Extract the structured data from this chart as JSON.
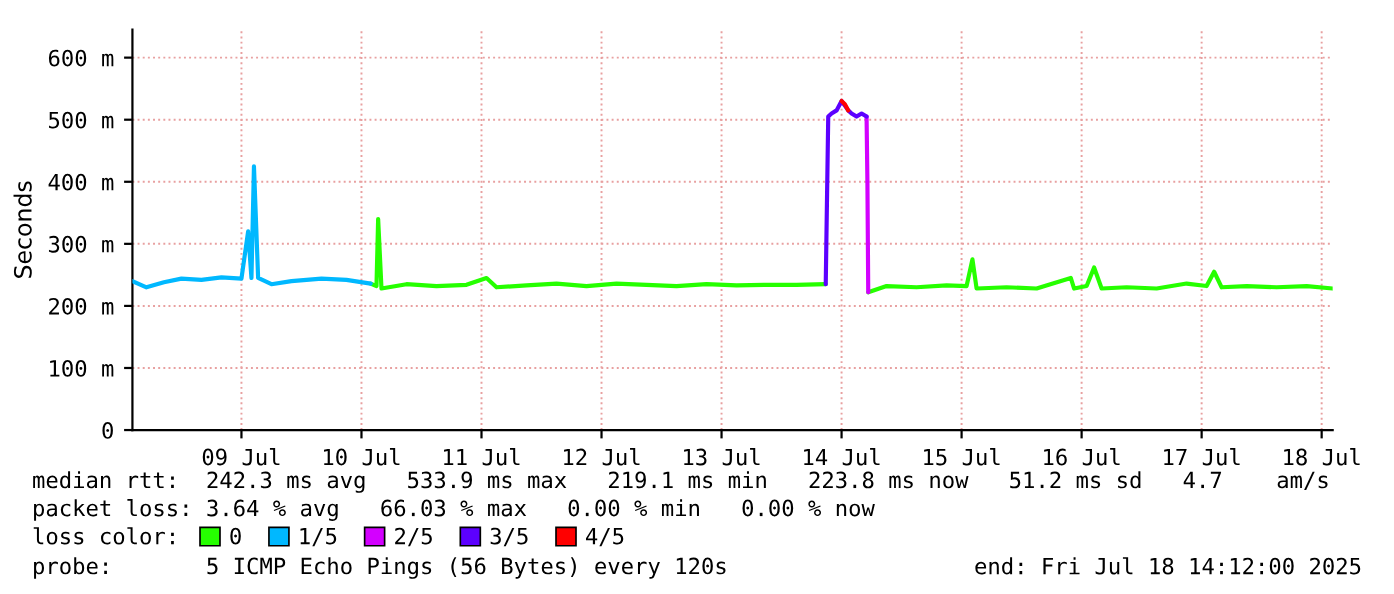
{
  "chart_data": {
    "type": "line",
    "ylabel": "Seconds",
    "xlim": [
      "2025-07-08T14:12",
      "2025-07-18T14:12"
    ],
    "xticks": [
      {
        "value": "2025-07-09T12:00",
        "label": "09 Jul"
      },
      {
        "value": "2025-07-10T12:00",
        "label": "10 Jul"
      },
      {
        "value": "2025-07-11T12:00",
        "label": "11 Jul"
      },
      {
        "value": "2025-07-12T12:00",
        "label": "12 Jul"
      },
      {
        "value": "2025-07-13T12:00",
        "label": "13 Jul"
      },
      {
        "value": "2025-07-14T12:00",
        "label": "14 Jul"
      },
      {
        "value": "2025-07-15T12:00",
        "label": "15 Jul"
      },
      {
        "value": "2025-07-16T12:00",
        "label": "16 Jul"
      },
      {
        "value": "2025-07-17T12:00",
        "label": "17 Jul"
      },
      {
        "value": "2025-07-18T12:00",
        "label": "18 Jul"
      }
    ],
    "ylim": [
      0,
      645
    ],
    "yticks": [
      0,
      {
        "value": 100,
        "label": "100 m"
      },
      {
        "value": 200,
        "label": "200 m"
      },
      {
        "value": 300,
        "label": "300 m"
      },
      {
        "value": 400,
        "label": "400 m"
      },
      {
        "value": 500,
        "label": "500 m"
      },
      {
        "value": 600,
        "label": "600 m"
      }
    ],
    "grid": true,
    "legend": "bottom",
    "legend_title": "loss color:",
    "series": [
      {
        "name": "0",
        "color": "#26ff00",
        "x": [
          "2025-07-10T13:50",
          "2025-07-10T15:00",
          "2025-07-10T15:20",
          "2025-07-10T16:00",
          "2025-07-10T21:00",
          "2025-07-11T03:00",
          "2025-07-11T09:00",
          "2025-07-11T13:00",
          "2025-07-11T15:00",
          "2025-07-11T21:00",
          "2025-07-12T03:00",
          "2025-07-12T09:00",
          "2025-07-12T15:00",
          "2025-07-12T21:00",
          "2025-07-13T03:00",
          "2025-07-13T09:00",
          "2025-07-13T15:00",
          "2025-07-13T21:00",
          "2025-07-14T03:00",
          "2025-07-14T08:50",
          "2025-07-14T12:00",
          "2025-07-14T17:20",
          "2025-07-14T21:00",
          "2025-07-15T03:00",
          "2025-07-15T09:00",
          "2025-07-15T13:00",
          "2025-07-15T14:10",
          "2025-07-15T15:00",
          "2025-07-15T21:00",
          "2025-07-16T03:00",
          "2025-07-16T09:50",
          "2025-07-16T10:30",
          "2025-07-16T13:00",
          "2025-07-16T14:30",
          "2025-07-16T16:00",
          "2025-07-16T21:00",
          "2025-07-17T03:00",
          "2025-07-17T09:00",
          "2025-07-17T13:00",
          "2025-07-17T14:30",
          "2025-07-17T16:00",
          "2025-07-17T21:00",
          "2025-07-18T03:00",
          "2025-07-18T09:00",
          "2025-07-18T14:12"
        ],
        "values": [
          236,
          232,
          340,
          228,
          235,
          232,
          234,
          245,
          230,
          233,
          236,
          232,
          236,
          234,
          232,
          235,
          233,
          234,
          234,
          235,
          null,
          222,
          232,
          230,
          233,
          232,
          275,
          228,
          230,
          228,
          245,
          228,
          232,
          262,
          228,
          230,
          228,
          236,
          232,
          255,
          230,
          232,
          230,
          232,
          228
        ]
      },
      {
        "name": "1/5",
        "color": "#00b8ff",
        "x": [
          "2025-07-08T14:12",
          "2025-07-08T17:00",
          "2025-07-08T20:30",
          "2025-07-09T00:00",
          "2025-07-09T04:00",
          "2025-07-09T08:00",
          "2025-07-09T12:00",
          "2025-07-09T13:20",
          "2025-07-09T14:00",
          "2025-07-09T14:30",
          "2025-07-09T15:20",
          "2025-07-09T18:00",
          "2025-07-09T22:00",
          "2025-07-10T04:00",
          "2025-07-10T09:00",
          "2025-07-10T13:50"
        ],
        "values": [
          240,
          230,
          238,
          244,
          242,
          246,
          244,
          320,
          245,
          425,
          245,
          235,
          240,
          244,
          242,
          236
        ]
      },
      {
        "name": "2/5",
        "color": "#d300ff",
        "x": [
          "2025-07-14T17:00",
          "2025-07-14T17:10",
          "2025-07-14T17:20"
        ],
        "values": [
          505,
          400,
          222
        ]
      },
      {
        "name": "3/5",
        "color": "#5c00ff",
        "x": [
          "2025-07-14T08:50",
          "2025-07-14T09:20",
          "2025-07-14T10:00",
          "2025-07-14T11:00",
          "2025-07-14T12:00",
          "2025-07-14T13:20",
          "2025-07-14T14:00",
          "2025-07-14T15:00",
          "2025-07-14T16:00",
          "2025-07-14T17:00"
        ],
        "values": [
          235,
          505,
          510,
          515,
          530,
          515,
          510,
          505,
          510,
          505
        ]
      },
      {
        "name": "4/5",
        "color": "#ff0000",
        "x": [
          "2025-07-14T12:00",
          "2025-07-14T12:40",
          "2025-07-14T13:20"
        ],
        "values": [
          530,
          525,
          515
        ]
      }
    ],
    "annotations": [
      "median rtt:  242.3 ms avg   533.9 ms max   219.1 ms min   223.8 ms now   51.2 ms sd   4.7    am/s",
      "packet loss: 3.64 % avg   66.03 % max   0.00 % min   0.00 % now",
      "probe:       5 ICMP Echo Pings (56 Bytes) every 120s",
      "end: Fri Jul 18 14:12:00 2025"
    ]
  }
}
